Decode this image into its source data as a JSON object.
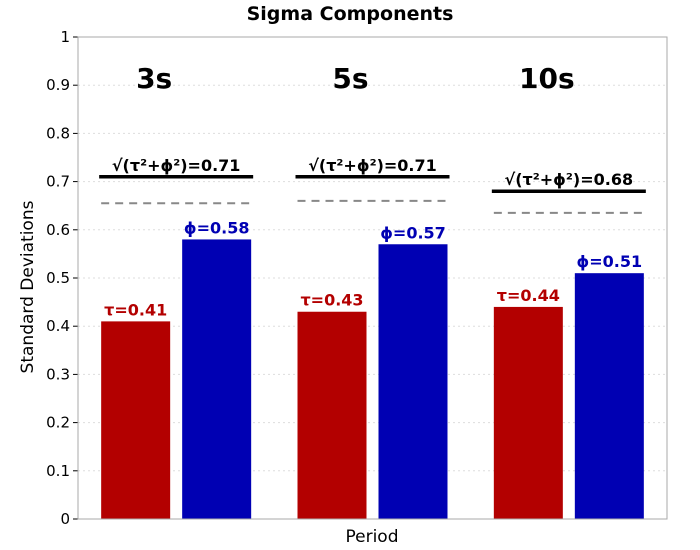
{
  "chart_data": {
    "type": "bar",
    "title": "Sigma Components",
    "xlabel": "Period",
    "ylabel": "Standard Deviations",
    "ylim": [
      0,
      1
    ],
    "yticks": [
      "0",
      "0.1",
      "0.2",
      "0.3",
      "0.4",
      "0.5",
      "0.6",
      "0.7",
      "0.8",
      "0.9",
      "1"
    ],
    "grid": true,
    "categories": [
      "3s",
      "5s",
      "10s"
    ],
    "series": [
      {
        "key": "tau",
        "color": "#b30000",
        "values": [
          0.41,
          0.43,
          0.44
        ],
        "labels": [
          "τ=0.41",
          "τ=0.43",
          "τ=0.44"
        ]
      },
      {
        "key": "phi",
        "color": "#0000b3",
        "values": [
          0.58,
          0.57,
          0.51
        ],
        "labels": [
          "ϕ=0.58",
          "ϕ=0.57",
          "ϕ=0.51"
        ]
      }
    ],
    "combined": {
      "color": "#000000",
      "values": [
        0.71,
        0.71,
        0.68
      ],
      "labels": [
        "√(τ²+ϕ²)=0.71",
        "√(τ²+ϕ²)=0.71",
        "√(τ²+ϕ²)=0.68"
      ]
    },
    "reference_dashed": {
      "color": "#888888",
      "values": [
        0.655,
        0.66,
        0.635
      ]
    }
  }
}
